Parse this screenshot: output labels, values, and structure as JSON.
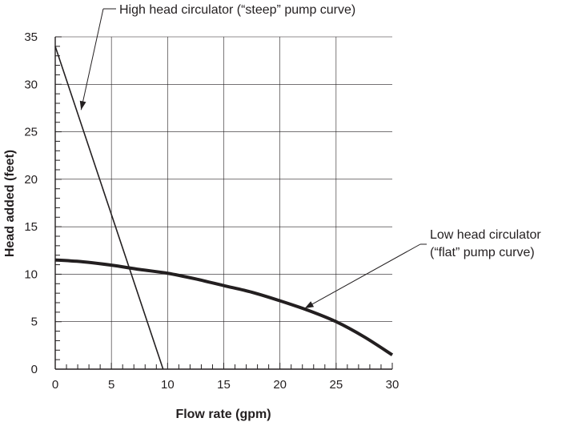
{
  "chart_data": {
    "type": "line",
    "xlabel": "Flow rate (gpm)",
    "ylabel": "Head added (feet)",
    "xlim": [
      0,
      30
    ],
    "ylim": [
      0,
      35
    ],
    "x_ticks": [
      "0",
      "5",
      "10",
      "15",
      "20",
      "25",
      "30"
    ],
    "y_ticks": [
      "0",
      "5",
      "10",
      "15",
      "20",
      "25",
      "30",
      "35"
    ],
    "x_minor_step": 1,
    "y_minor_step": 1,
    "grid": true,
    "series": [
      {
        "x": [
          0,
          9.6
        ],
        "y": [
          34,
          0
        ]
      },
      {
        "x": [
          0,
          2.5,
          5,
          7.5,
          10,
          12.5,
          15,
          17.5,
          20,
          22.5,
          25,
          27.5,
          30
        ],
        "y": [
          11.5,
          11.3,
          10.95,
          10.5,
          10.1,
          9.5,
          8.8,
          8.1,
          7.2,
          6.2,
          5.0,
          3.4,
          1.5
        ]
      }
    ],
    "annotations": [
      {
        "lines": [
          "High head circulator (“steep” pump curve)"
        ],
        "series_index": 0,
        "point": [
          2.3,
          27.3
        ]
      },
      {
        "lines": [
          "Low head circulator",
          "(“flat” pump curve)"
        ],
        "series_index": 1,
        "point": [
          22.2,
          6.4
        ]
      }
    ],
    "colors": {
      "line": "#231f20",
      "grid": "#231f20"
    }
  }
}
